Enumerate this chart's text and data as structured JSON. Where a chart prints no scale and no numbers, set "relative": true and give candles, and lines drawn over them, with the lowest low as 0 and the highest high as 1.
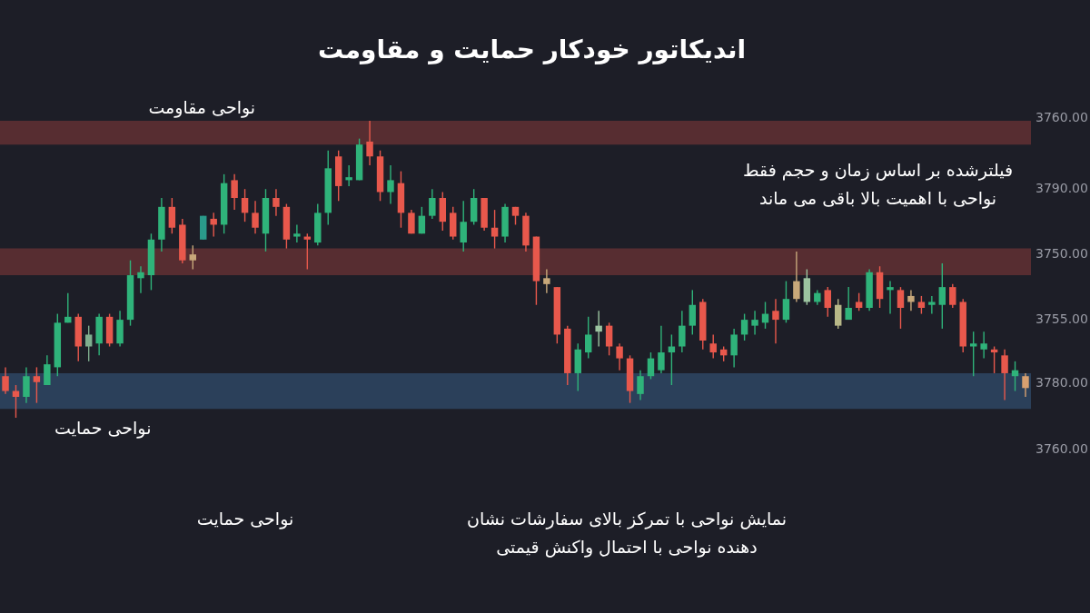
{
  "chart_data": {
    "type": "candlestick",
    "title": "اندیکاتور خودکار حمایت و مقاومت",
    "relative": true,
    "categories": [
      null,
      null,
      null,
      null,
      null,
      null,
      null,
      null,
      null,
      null,
      null,
      null,
      null,
      null,
      null,
      null,
      null,
      null,
      null,
      null,
      null,
      null,
      null,
      null,
      null,
      null,
      null,
      null,
      null,
      null,
      null,
      null,
      null,
      null,
      null,
      null,
      null,
      null,
      null,
      null,
      null,
      null,
      null,
      null,
      null,
      null,
      null,
      null,
      null,
      null,
      null,
      null,
      null,
      null,
      null,
      null,
      null,
      null,
      null,
      null,
      null,
      null,
      null,
      null,
      null,
      null,
      null,
      null,
      null,
      null,
      null,
      null,
      null,
      null,
      null,
      null,
      null,
      null,
      null,
      null,
      null,
      null,
      null,
      null,
      null,
      null,
      null,
      null,
      null,
      null,
      null,
      null,
      null,
      null,
      null,
      null,
      null,
      null,
      null
    ],
    "ohlc": [
      [
        0.14,
        0.17,
        0.08,
        0.09
      ],
      [
        0.09,
        0.11,
        0,
        0.07
      ],
      [
        0.07,
        0.17,
        0.05,
        0.14
      ],
      [
        0.14,
        0.17,
        0.05,
        0.12
      ],
      [
        0.11,
        0.21,
        0.11,
        0.18
      ],
      [
        0.17,
        0.35,
        0.14,
        0.32
      ],
      [
        0.32,
        0.42,
        0.32,
        0.34
      ],
      [
        0.34,
        0.35,
        0.19,
        0.24
      ],
      [
        0.24,
        0.31,
        0.19,
        0.28
      ],
      [
        0.25,
        0.35,
        0.21,
        0.34
      ],
      [
        0.34,
        0.35,
        0.24,
        0.25
      ],
      [
        0.25,
        0.36,
        0.24,
        0.33
      ],
      [
        0.33,
        0.53,
        0.31,
        0.48
      ],
      [
        0.47,
        0.51,
        0.42,
        0.49
      ],
      [
        0.48,
        0.62,
        0.43,
        0.6
      ],
      [
        0.6,
        0.74,
        0.56,
        0.71
      ],
      [
        0.71,
        0.74,
        0.62,
        0.64
      ],
      [
        0.65,
        0.67,
        0.52,
        0.53
      ],
      [
        0.53,
        0.58,
        0.5,
        0.55
      ],
      [
        0.6,
        0.68,
        0.6,
        0.68
      ],
      [
        0.67,
        0.69,
        0.61,
        0.65
      ],
      [
        0.65,
        0.82,
        0.62,
        0.79
      ],
      [
        0.8,
        0.82,
        0.7,
        0.74
      ],
      [
        0.74,
        0.77,
        0.66,
        0.69
      ],
      [
        0.69,
        0.73,
        0.62,
        0.64
      ],
      [
        0.62,
        0.77,
        0.56,
        0.74
      ],
      [
        0.74,
        0.77,
        0.68,
        0.71
      ],
      [
        0.71,
        0.72,
        0.57,
        0.6
      ],
      [
        0.61,
        0.65,
        0.59,
        0.62
      ],
      [
        0.61,
        0.62,
        0.5,
        0.6
      ],
      [
        0.59,
        0.72,
        0.58,
        0.69
      ],
      [
        0.69,
        0.9,
        0.65,
        0.84
      ],
      [
        0.88,
        0.9,
        0.73,
        0.78
      ],
      [
        0.8,
        0.85,
        0.78,
        0.81
      ],
      [
        0.8,
        0.94,
        0.8,
        0.92
      ],
      [
        0.93,
        1,
        0.85,
        0.88
      ],
      [
        0.88,
        0.9,
        0.73,
        0.76
      ],
      [
        0.76,
        0.85,
        0.72,
        0.8
      ],
      [
        0.79,
        0.83,
        0.64,
        0.69
      ],
      [
        0.69,
        0.7,
        0.62,
        0.62
      ],
      [
        0.62,
        0.71,
        0.62,
        0.68
      ],
      [
        0.68,
        0.77,
        0.67,
        0.74
      ],
      [
        0.74,
        0.76,
        0.63,
        0.66
      ],
      [
        0.69,
        0.71,
        0.6,
        0.61
      ],
      [
        0.59,
        0.73,
        0.56,
        0.66
      ],
      [
        0.66,
        0.77,
        0.65,
        0.74
      ],
      [
        0.74,
        0.74,
        0.63,
        0.64
      ],
      [
        0.64,
        0.7,
        0.57,
        0.61
      ],
      [
        0.61,
        0.72,
        0.59,
        0.71
      ],
      [
        0.71,
        0.71,
        0.65,
        0.68
      ],
      [
        0.68,
        0.69,
        0.56,
        0.58
      ],
      [
        0.61,
        0.61,
        0.38,
        0.46
      ],
      [
        0.45,
        0.5,
        0.42,
        0.47
      ],
      [
        0.44,
        0.44,
        0.25,
        0.28
      ],
      [
        0.3,
        0.31,
        0.11,
        0.15
      ],
      [
        0.15,
        0.25,
        0.09,
        0.23
      ],
      [
        0.22,
        0.34,
        0.2,
        0.28
      ],
      [
        0.29,
        0.36,
        0.24,
        0.31
      ],
      [
        0.31,
        0.32,
        0.21,
        0.24
      ],
      [
        0.24,
        0.25,
        0.16,
        0.2
      ],
      [
        0.2,
        0.21,
        0.05,
        0.09
      ],
      [
        0.08,
        0.16,
        0.06,
        0.14
      ],
      [
        0.14,
        0.22,
        0.13,
        0.2
      ],
      [
        0.16,
        0.31,
        0.15,
        0.22
      ],
      [
        0.22,
        0.28,
        0.11,
        0.24
      ],
      [
        0.24,
        0.36,
        0.22,
        0.31
      ],
      [
        0.31,
        0.43,
        0.28,
        0.38
      ],
      [
        0.39,
        0.4,
        0.23,
        0.26
      ],
      [
        0.25,
        0.28,
        0.2,
        0.22
      ],
      [
        0.23,
        0.24,
        0.19,
        0.21
      ],
      [
        0.21,
        0.3,
        0.17,
        0.28
      ],
      [
        0.28,
        0.35,
        0.26,
        0.33
      ],
      [
        0.31,
        0.36,
        0.28,
        0.33
      ],
      [
        0.32,
        0.39,
        0.3,
        0.35
      ],
      [
        0.36,
        0.4,
        0.25,
        0.33
      ],
      [
        0.33,
        0.46,
        0.32,
        0.4
      ],
      [
        0.4,
        0.56,
        0.39,
        0.46
      ],
      [
        0.39,
        0.5,
        0.38,
        0.47
      ],
      [
        0.39,
        0.43,
        0.38,
        0.42
      ],
      [
        0.43,
        0.44,
        0.34,
        0.37
      ],
      [
        0.31,
        0.4,
        0.3,
        0.38
      ],
      [
        0.33,
        0.44,
        0.33,
        0.37
      ],
      [
        0.39,
        0.42,
        0.36,
        0.37
      ],
      [
        0.37,
        0.5,
        0.36,
        0.49
      ],
      [
        0.49,
        0.51,
        0.37,
        0.4
      ],
      [
        0.43,
        0.46,
        0.35,
        0.44
      ],
      [
        0.43,
        0.44,
        0.3,
        0.37
      ],
      [
        0.39,
        0.43,
        0.36,
        0.41
      ],
      [
        0.39,
        0.41,
        0.35,
        0.37
      ],
      [
        0.38,
        0.41,
        0.35,
        0.39
      ],
      [
        0.38,
        0.52,
        0.3,
        0.44
      ],
      [
        0.44,
        0.45,
        0.37,
        0.38
      ],
      [
        0.39,
        0.4,
        0.22,
        0.24
      ],
      [
        0.24,
        0.29,
        0.14,
        0.25
      ],
      [
        0.23,
        0.29,
        0.2,
        0.25
      ],
      [
        0.23,
        0.24,
        0.15,
        0.22
      ],
      [
        0.21,
        0.23,
        0.06,
        0.15
      ],
      [
        0.14,
        0.19,
        0.09,
        0.16
      ],
      [
        0.14,
        0.15,
        0.07,
        0.1
      ]
    ],
    "colors": [
      "#e8584c",
      "#e8584c",
      "#2fb37a",
      "#e8584c",
      "#2fb37a",
      "#2fb37a",
      "#2fb37a",
      "#e8584c",
      "#7fae8e",
      "#2fb37a",
      "#e8584c",
      "#2fb37a",
      "#2fb37a",
      "#2fb37a",
      "#2fb37a",
      "#2fb37a",
      "#e8584c",
      "#e8584c",
      "#c8a87a",
      "#2a9a8a",
      "#e8584c",
      "#2fb37a",
      "#e8584c",
      "#e8584c",
      "#e8584c",
      "#2fb37a",
      "#e8584c",
      "#e8584c",
      "#2fb37a",
      "#e8584c",
      "#2fb37a",
      "#2fb37a",
      "#e8584c",
      "#2fb37a",
      "#2fb37a",
      "#e8584c",
      "#e8584c",
      "#2fb37a",
      "#e8584c",
      "#e8584c",
      "#2fb37a",
      "#2fb37a",
      "#e8584c",
      "#e8584c",
      "#2fb37a",
      "#2fb37a",
      "#e8584c",
      "#e8584c",
      "#2fb37a",
      "#e8584c",
      "#e8584c",
      "#e8584c",
      "#c8a87a",
      "#e8584c",
      "#e8584c",
      "#2fb37a",
      "#2fb37a",
      "#9cc4a0",
      "#e8584c",
      "#e8584c",
      "#e8584c",
      "#2fb37a",
      "#2fb37a",
      "#2fb37a",
      "#2fb37a",
      "#2fb37a",
      "#2fb37a",
      "#e8584c",
      "#e8584c",
      "#e8584c",
      "#2fb37a",
      "#2fb37a",
      "#2fb37a",
      "#2fb37a",
      "#e8584c",
      "#2fb37a",
      "#c8a87a",
      "#9cc4a0",
      "#2fb37a",
      "#e8584c",
      "#b8b888",
      "#2fb37a",
      "#e8584c",
      "#2fb37a",
      "#e8584c",
      "#2fb37a",
      "#e8584c",
      "#c8a87a",
      "#e8584c",
      "#2fb37a",
      "#2fb37a",
      "#e8584c",
      "#e8584c",
      "#2fb37a",
      "#2fb37a",
      "#e8584c",
      "#e8584c",
      "#2fb37a",
      "#d8a070"
    ],
    "bands": [
      {
        "axis": "y",
        "from": 0.92,
        "to": 1,
        "label": "نواحی مقاومت",
        "color": "#a0403d"
      },
      {
        "axis": "y",
        "from": 0.48,
        "to": 0.57,
        "label": null,
        "color": "#a0403d"
      },
      {
        "axis": "y",
        "from": 0.03,
        "to": 0.15,
        "label": "نواحی حمایت",
        "color": "#3d6a9a"
      }
    ],
    "annotations": [
      "فیلترشده بر اساس زمان و حجم فقط\nنواحی با اهمیت بالا باقی می ماند",
      "نواحی حمایت",
      "نمایش نواحی با تمرکز بالای سفارشات نشان\nدهنده نواحی با احتمال واکنش قیمتی",
      "3760.00",
      "3790.00",
      "3750.00",
      "3755.00",
      "3780.00",
      "3760.00"
    ]
  }
}
